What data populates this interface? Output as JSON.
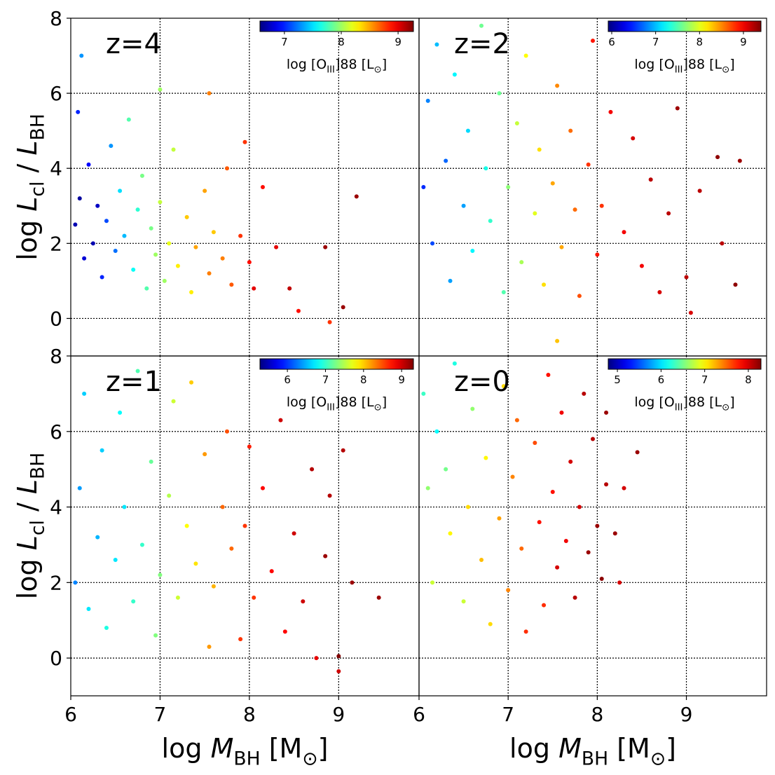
{
  "chart_data": [
    {
      "type": "scatter",
      "title": "z=4",
      "x": [
        6.05,
        6.1,
        6.15,
        6.2,
        6.08,
        6.12,
        6.25,
        6.3,
        6.35,
        6.4,
        6.45,
        6.5,
        6.55,
        6.6,
        6.65,
        6.7,
        6.75,
        6.8,
        6.85,
        6.9,
        6.95,
        7.0,
        7.05,
        7.1,
        7.15,
        7.2,
        7.3,
        7.35,
        7.4,
        7.5,
        7.55,
        7.6,
        7.7,
        7.75,
        7.8,
        7.9,
        7.95,
        8.0,
        8.05,
        8.15,
        8.3,
        8.45,
        8.55,
        8.85,
        8.9,
        9.05,
        9.2,
        7.0,
        7.55
      ],
      "y": [
        2.5,
        3.2,
        1.6,
        4.1,
        5.5,
        7.0,
        2.0,
        3.0,
        1.1,
        2.6,
        4.6,
        1.8,
        3.4,
        2.2,
        5.3,
        1.3,
        2.9,
        3.8,
        0.8,
        2.4,
        1.7,
        3.1,
        1.0,
        2.0,
        4.5,
        1.4,
        2.7,
        0.7,
        1.9,
        3.4,
        1.2,
        2.3,
        1.6,
        4.0,
        0.9,
        2.2,
        4.7,
        1.5,
        0.8,
        3.5,
        1.9,
        0.8,
        0.2,
        1.9,
        -0.1,
        0.3,
        3.25,
        6.1,
        6.0
      ],
      "c": [
        6.7,
        6.65,
        6.8,
        6.9,
        7.0,
        7.3,
        6.7,
        6.75,
        7.0,
        7.1,
        7.3,
        7.2,
        7.5,
        7.4,
        7.8,
        7.6,
        7.7,
        7.9,
        7.8,
        7.9,
        8.0,
        8.1,
        8.0,
        8.2,
        8.1,
        8.3,
        8.4,
        8.3,
        8.5,
        8.5,
        8.6,
        8.4,
        8.6,
        8.7,
        8.7,
        8.8,
        8.8,
        8.9,
        9.0,
        8.9,
        9.0,
        9.1,
        8.9,
        9.2,
        8.8,
        9.2,
        9.2,
        8.0,
        8.6
      ],
      "xlim": [
        6,
        9.9
      ],
      "ylim": [
        -1,
        8
      ],
      "xticks": [
        6,
        7,
        8,
        9
      ],
      "yticks": [
        0,
        2,
        4,
        6,
        8
      ],
      "show_xticklabels": false,
      "show_yticklabels": true,
      "grid": true,
      "colormap": "jet",
      "clim": [
        6.57,
        9.27
      ],
      "colorbar_ticks": [
        7,
        8,
        9
      ],
      "colorbar_label": [
        {
          "text": "log [O"
        },
        {
          "text": "III",
          "sub": true
        },
        {
          "text": "]88 [L"
        },
        {
          "text": "⊙",
          "sub": true
        },
        {
          "text": "]"
        }
      ],
      "ylabel": [
        {
          "text": "log "
        },
        {
          "text": "L",
          "italic": true
        },
        {
          "text": "cl",
          "sub": true
        },
        {
          "text": " / "
        },
        {
          "text": "L",
          "italic": true
        },
        {
          "text": "BH",
          "sub": true
        }
      ]
    },
    {
      "type": "scatter",
      "title": "z=2",
      "x": [
        6.05,
        6.1,
        6.15,
        6.2,
        6.3,
        6.35,
        6.4,
        6.5,
        6.55,
        6.6,
        6.7,
        6.75,
        6.8,
        6.9,
        6.95,
        7.0,
        7.1,
        7.15,
        7.2,
        7.3,
        7.35,
        7.4,
        7.5,
        7.55,
        7.6,
        7.7,
        7.75,
        7.8,
        7.9,
        7.95,
        8.0,
        8.05,
        8.15,
        8.3,
        8.4,
        8.5,
        8.6,
        8.7,
        8.8,
        8.9,
        9.0,
        9.15,
        9.35,
        9.4,
        9.55,
        9.6,
        9.05,
        7.55
      ],
      "y": [
        3.5,
        5.8,
        2.0,
        7.3,
        4.2,
        1.0,
        6.5,
        3.0,
        5.0,
        1.8,
        7.8,
        4.0,
        2.6,
        6.0,
        0.7,
        3.5,
        5.2,
        1.5,
        7.0,
        2.8,
        4.5,
        0.9,
        3.6,
        6.2,
        1.9,
        5.0,
        2.9,
        0.6,
        4.1,
        7.4,
        1.7,
        3.0,
        5.5,
        2.3,
        4.8,
        1.4,
        3.7,
        0.7,
        2.8,
        5.6,
        1.1,
        3.4,
        4.3,
        2.0,
        0.9,
        4.2,
        0.15,
        -0.6
      ],
      "c": [
        6.5,
        6.8,
        6.6,
        7.0,
        6.7,
        6.9,
        7.2,
        6.9,
        7.1,
        7.2,
        7.6,
        7.3,
        7.4,
        7.6,
        7.5,
        7.7,
        7.9,
        7.8,
        8.1,
        8.0,
        8.2,
        8.2,
        8.4,
        8.5,
        8.4,
        8.6,
        8.6,
        8.7,
        8.8,
        8.9,
        8.9,
        8.8,
        9.0,
        9.0,
        9.1,
        9.0,
        9.2,
        9.1,
        9.2,
        9.3,
        9.2,
        9.2,
        9.35,
        9.2,
        9.35,
        9.3,
        9.1,
        8.3
      ],
      "xlim": [
        6,
        9.9
      ],
      "ylim": [
        -1,
        8
      ],
      "xticks": [
        6,
        7,
        8,
        9
      ],
      "yticks": [
        0,
        2,
        4,
        6,
        8
      ],
      "show_xticklabels": false,
      "show_yticklabels": false,
      "grid": true,
      "colormap": "jet",
      "clim": [
        5.92,
        9.4
      ],
      "colorbar_ticks": [
        6,
        7,
        8,
        9
      ],
      "colorbar_label": [
        {
          "text": "log [O"
        },
        {
          "text": "III",
          "sub": true
        },
        {
          "text": "]88 [L"
        },
        {
          "text": "⊙",
          "sub": true
        },
        {
          "text": "]"
        }
      ]
    },
    {
      "type": "scatter",
      "title": "z=1",
      "x": [
        6.05,
        6.1,
        6.15,
        6.2,
        6.3,
        6.35,
        6.4,
        6.5,
        6.55,
        6.6,
        6.7,
        6.75,
        6.8,
        6.9,
        6.95,
        7.0,
        7.1,
        7.15,
        7.2,
        7.3,
        7.35,
        7.4,
        7.5,
        7.55,
        7.6,
        7.7,
        7.75,
        7.8,
        7.9,
        7.95,
        8.0,
        8.05,
        8.15,
        8.25,
        8.35,
        8.4,
        8.5,
        8.6,
        8.7,
        8.75,
        8.85,
        8.9,
        9.0,
        9.05,
        9.15,
        9.45,
        9.0
      ],
      "y": [
        2.0,
        4.5,
        7.0,
        1.3,
        3.2,
        5.5,
        0.8,
        2.6,
        6.5,
        4.0,
        1.5,
        7.6,
        3.0,
        5.2,
        0.6,
        2.2,
        4.3,
        6.8,
        1.6,
        3.5,
        7.3,
        2.5,
        5.4,
        0.3,
        1.9,
        4.0,
        6.0,
        2.9,
        0.5,
        3.5,
        5.6,
        1.6,
        4.5,
        2.3,
        6.3,
        0.7,
        3.3,
        1.5,
        5.0,
        0.0,
        2.7,
        4.3,
        0.05,
        5.5,
        2.0,
        1.6,
        -0.35
      ],
      "c": [
        6.3,
        6.4,
        6.6,
        6.7,
        6.5,
        6.6,
        6.9,
        6.7,
        6.8,
        6.7,
        7.0,
        7.1,
        7.0,
        7.2,
        7.3,
        7.3,
        7.5,
        7.6,
        7.6,
        7.8,
        8.0,
        7.9,
        8.2,
        8.2,
        8.1,
        8.4,
        8.5,
        8.4,
        8.6,
        8.6,
        8.7,
        8.6,
        8.8,
        8.8,
        9.0,
        8.8,
        9.0,
        9.0,
        9.1,
        8.9,
        9.2,
        9.1,
        9.3,
        9.1,
        9.2,
        9.2,
        9.0
      ],
      "xlim": [
        6,
        9.9
      ],
      "ylim": [
        -1,
        8
      ],
      "xticks": [
        6,
        7,
        8,
        9
      ],
      "yticks": [
        0,
        2,
        4,
        6,
        8
      ],
      "show_xticklabels": true,
      "show_yticklabels": true,
      "grid": true,
      "colormap": "jet",
      "clim": [
        5.28,
        9.31
      ],
      "colorbar_ticks": [
        6,
        7,
        8,
        9
      ],
      "colorbar_label": [
        {
          "text": "log [O"
        },
        {
          "text": "III",
          "sub": true
        },
        {
          "text": "]88 [L"
        },
        {
          "text": "⊙",
          "sub": true
        },
        {
          "text": "]"
        }
      ],
      "ylabel": [
        {
          "text": "log "
        },
        {
          "text": "L",
          "italic": true
        },
        {
          "text": "cl",
          "sub": true
        },
        {
          "text": " / "
        },
        {
          "text": "L",
          "italic": true
        },
        {
          "text": "BH",
          "sub": true
        }
      ],
      "xlabel": [
        {
          "text": "log "
        },
        {
          "text": "M",
          "italic": true
        },
        {
          "text": "BH",
          "sub": true
        },
        {
          "text": " [M"
        },
        {
          "text": "⊙",
          "sub": true
        },
        {
          "text": "]"
        }
      ]
    },
    {
      "type": "scatter",
      "title": "z=0",
      "x": [
        6.05,
        6.1,
        6.15,
        6.2,
        6.3,
        6.35,
        6.4,
        6.5,
        6.55,
        6.6,
        6.7,
        6.75,
        6.8,
        6.9,
        6.95,
        7.0,
        7.05,
        7.1,
        7.15,
        7.2,
        7.3,
        7.35,
        7.4,
        7.45,
        7.5,
        7.55,
        7.6,
        7.65,
        7.7,
        7.75,
        7.8,
        7.85,
        7.9,
        7.95,
        8.0,
        8.05,
        8.1,
        8.2,
        8.3,
        8.45,
        8.25,
        8.1
      ],
      "y": [
        7.0,
        4.5,
        2.0,
        6.0,
        5.0,
        3.3,
        7.8,
        1.5,
        4.0,
        6.6,
        2.6,
        5.3,
        0.9,
        3.7,
        7.2,
        1.8,
        4.8,
        6.3,
        2.9,
        0.7,
        5.7,
        3.6,
        1.4,
        7.5,
        4.4,
        2.4,
        6.5,
        3.1,
        5.2,
        1.6,
        4.0,
        7.0,
        2.8,
        5.8,
        3.5,
        2.1,
        4.6,
        3.3,
        4.5,
        5.45,
        2.0,
        6.5
      ],
      "c": [
        6.3,
        6.6,
        6.8,
        6.1,
        6.5,
        7.0,
        6.2,
        6.8,
        7.1,
        6.6,
        7.2,
        7.0,
        7.1,
        7.3,
        7.1,
        7.4,
        7.4,
        7.5,
        7.5,
        7.7,
        7.6,
        7.8,
        7.7,
        7.8,
        7.8,
        8.0,
        7.9,
        7.9,
        8.0,
        8.1,
        8.0,
        8.1,
        8.2,
        8.1,
        8.2,
        8.25,
        8.1,
        8.2,
        8.0,
        8.2,
        8.0,
        8.2
      ],
      "xlim": [
        6,
        9.9
      ],
      "ylim": [
        -1,
        8
      ],
      "xticks": [
        6,
        7,
        8,
        9
      ],
      "yticks": [
        0,
        2,
        4,
        6,
        8
      ],
      "show_xticklabels": true,
      "show_yticklabels": false,
      "grid": true,
      "colormap": "jet",
      "clim": [
        4.79,
        8.29
      ],
      "colorbar_ticks": [
        5,
        6,
        7,
        8
      ],
      "colorbar_label": [
        {
          "text": "log [O"
        },
        {
          "text": "III",
          "sub": true
        },
        {
          "text": "]88 [L"
        },
        {
          "text": "⊙",
          "sub": true
        },
        {
          "text": "]"
        }
      ],
      "xlabel": [
        {
          "text": "log "
        },
        {
          "text": "M",
          "italic": true
        },
        {
          "text": "BH",
          "sub": true
        },
        {
          "text": " [M"
        },
        {
          "text": "⊙",
          "sub": true
        },
        {
          "text": "]"
        }
      ]
    }
  ]
}
